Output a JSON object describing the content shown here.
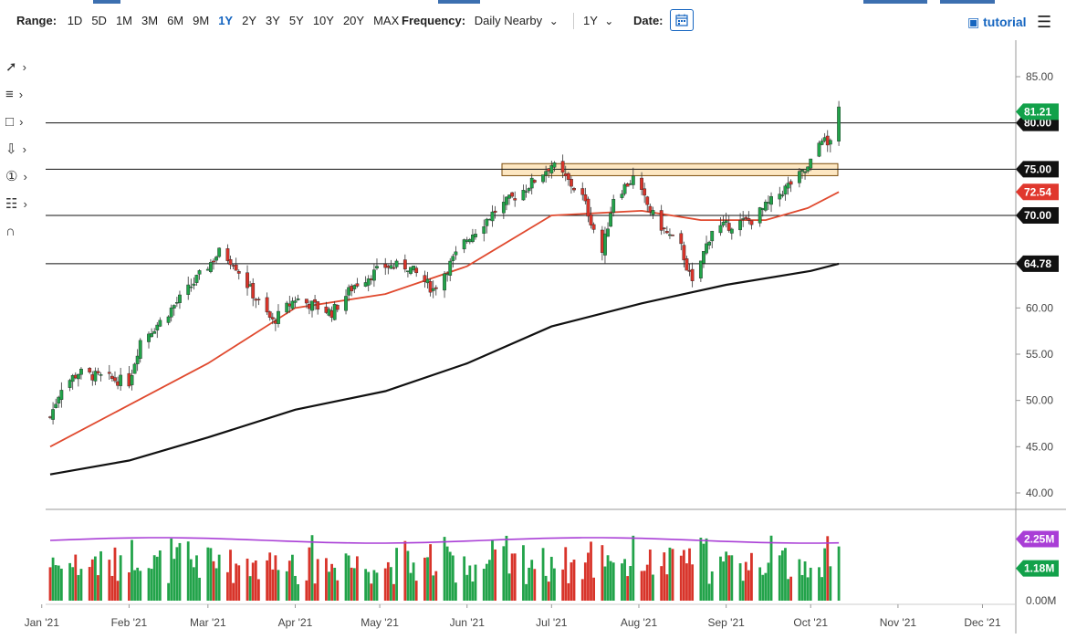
{
  "toolbar": {
    "range_label": "Range:",
    "ranges": [
      "1D",
      "5D",
      "1M",
      "3M",
      "6M",
      "9M",
      "1Y",
      "2Y",
      "3Y",
      "5Y",
      "10Y",
      "20Y",
      "MAX"
    ],
    "active_range": "1Y",
    "frequency_label": "Frequency:",
    "frequency_value": "Daily Nearby",
    "period_value": "1Y",
    "date_label": "Date:",
    "tutorial_label": "tutorial"
  },
  "left_tools": [
    "trend-line-icon",
    "fib-retracement-icon",
    "rectangle-icon",
    "arrow-down-icon",
    "numbered-marker-icon",
    "measure-icon",
    "magnet-icon"
  ],
  "colors": {
    "up_candle": "#22a34a",
    "down_candle": "#d8342a",
    "ma50": "#e04a2f",
    "ma200": "#111111",
    "volume_ma": "#a93ed6",
    "zone_fill": "#fde7c2",
    "zone_stroke": "#7a4b0b",
    "price_badge": "#12a14a",
    "ma50_badge": "#e0382e",
    "volume_ma_badge": "#a93ed6"
  },
  "chart_data": {
    "type": "candlestick",
    "y_axis": {
      "ylim": [
        40.0,
        85.0
      ],
      "ticks": [
        "85.00",
        "80.00",
        "75.00",
        "70.00",
        "65.00",
        "60.00",
        "55.00",
        "50.00",
        "45.00",
        "40.00"
      ]
    },
    "x_axis": {
      "ticks": [
        "Jan '21",
        "Feb '21",
        "Mar '21",
        "Apr '21",
        "May '21",
        "Jun '21",
        "Jul '21",
        "Aug '21",
        "Sep '21",
        "Oct '21",
        "Nov '21",
        "Dec '21"
      ]
    },
    "horizontal_levels": [
      80.0,
      75.0,
      70.0,
      64.78
    ],
    "level_labels": [
      {
        "value": 80.0,
        "label": "80.00"
      },
      {
        "value": 75.0,
        "label": "75.00"
      },
      {
        "value": 70.0,
        "label": "70.00"
      },
      {
        "value": 64.78,
        "label": "64.78"
      }
    ],
    "support_zone": {
      "from": 74.3,
      "to": 75.6
    },
    "last_price": {
      "value": 81.21,
      "label": "81.21"
    },
    "ma50_last": {
      "value": 72.54,
      "label": "72.54"
    },
    "price_path": [
      {
        "d": "2021-01-04",
        "v": 48.2
      },
      {
        "d": "2021-01-08",
        "v": 51.5
      },
      {
        "d": "2021-01-14",
        "v": 53.0
      },
      {
        "d": "2021-01-22",
        "v": 52.5
      },
      {
        "d": "2021-02-01",
        "v": 52.0
      },
      {
        "d": "2021-02-05",
        "v": 56.5
      },
      {
        "d": "2021-02-12",
        "v": 58.5
      },
      {
        "d": "2021-02-22",
        "v": 62.0
      },
      {
        "d": "2021-03-05",
        "v": 66.0
      },
      {
        "d": "2021-03-10",
        "v": 65.0
      },
      {
        "d": "2021-03-19",
        "v": 60.5
      },
      {
        "d": "2021-03-24",
        "v": 58.5
      },
      {
        "d": "2021-04-01",
        "v": 61.0
      },
      {
        "d": "2021-04-14",
        "v": 59.5
      },
      {
        "d": "2021-04-22",
        "v": 62.5
      },
      {
        "d": "2021-05-03",
        "v": 64.5
      },
      {
        "d": "2021-05-11",
        "v": 64.5
      },
      {
        "d": "2021-05-20",
        "v": 62.0
      },
      {
        "d": "2021-06-01",
        "v": 67.5
      },
      {
        "d": "2021-06-11",
        "v": 70.5
      },
      {
        "d": "2021-06-22",
        "v": 73.0
      },
      {
        "d": "2021-07-01",
        "v": 75.5
      },
      {
        "d": "2021-07-06",
        "v": 74.0
      },
      {
        "d": "2021-07-12",
        "v": 72.0
      },
      {
        "d": "2021-07-19",
        "v": 66.0
      },
      {
        "d": "2021-07-23",
        "v": 72.0
      },
      {
        "d": "2021-07-30",
        "v": 74.0
      },
      {
        "d": "2021-08-06",
        "v": 70.0
      },
      {
        "d": "2021-08-11",
        "v": 68.0
      },
      {
        "d": "2021-08-16",
        "v": 66.5
      },
      {
        "d": "2021-08-20",
        "v": 62.5
      },
      {
        "d": "2021-08-27",
        "v": 68.5
      },
      {
        "d": "2021-09-03",
        "v": 69.0
      },
      {
        "d": "2021-09-10",
        "v": 69.5
      },
      {
        "d": "2021-09-17",
        "v": 71.5
      },
      {
        "d": "2021-09-24",
        "v": 73.5
      },
      {
        "d": "2021-09-30",
        "v": 75.0
      },
      {
        "d": "2021-10-05",
        "v": 78.5
      },
      {
        "d": "2021-10-07",
        "v": 77.5
      },
      {
        "d": "2021-10-11",
        "v": 81.2
      }
    ],
    "ma50_path": [
      {
        "d": "2021-01-04",
        "v": 45.0
      },
      {
        "d": "2021-02-01",
        "v": 49.5
      },
      {
        "d": "2021-03-01",
        "v": 54.0
      },
      {
        "d": "2021-04-01",
        "v": 60.0
      },
      {
        "d": "2021-05-03",
        "v": 61.5
      },
      {
        "d": "2021-06-01",
        "v": 64.5
      },
      {
        "d": "2021-07-01",
        "v": 70.0
      },
      {
        "d": "2021-08-02",
        "v": 70.5
      },
      {
        "d": "2021-08-23",
        "v": 69.5
      },
      {
        "d": "2021-09-15",
        "v": 69.5
      },
      {
        "d": "2021-09-30",
        "v": 70.8
      },
      {
        "d": "2021-10-11",
        "v": 72.54
      }
    ],
    "ma200_path": [
      {
        "d": "2021-01-04",
        "v": 42.0
      },
      {
        "d": "2021-02-01",
        "v": 43.5
      },
      {
        "d": "2021-03-01",
        "v": 46.0
      },
      {
        "d": "2021-04-01",
        "v": 49.0
      },
      {
        "d": "2021-05-03",
        "v": 51.0
      },
      {
        "d": "2021-06-01",
        "v": 54.0
      },
      {
        "d": "2021-07-01",
        "v": 58.0
      },
      {
        "d": "2021-08-02",
        "v": 60.5
      },
      {
        "d": "2021-09-01",
        "v": 62.5
      },
      {
        "d": "2021-10-01",
        "v": 64.0
      },
      {
        "d": "2021-10-11",
        "v": 64.78
      }
    ],
    "volume": {
      "ylim": [
        0,
        3.0
      ],
      "ticks": [
        "0.00M"
      ],
      "last_volume": {
        "value": 1.18,
        "label": "1.18M"
      },
      "volume_ma_last": {
        "value": 2.25,
        "label": "2.25M"
      },
      "volume_ma_level": 2.2
    }
  }
}
